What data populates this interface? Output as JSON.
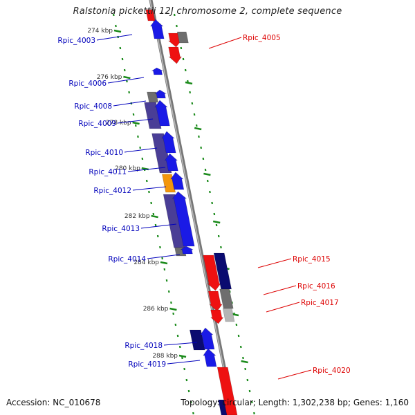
{
  "title": "Ralstonia pickettii 12J chromosome 2, complete sequence",
  "footer": {
    "accession": "Accession: NC_010678",
    "topology": "Topology: circular; Length: 1,302,238 bp; Genes: 1,160"
  },
  "colors": {
    "forward_label": "#0000bb",
    "reverse_label": "#dd0000",
    "scale_tick": "#1a8a1a",
    "backbone": "#8c8c8c"
  },
  "scale_labels": [
    "274 kbp",
    "276 kbp",
    "278 kbp",
    "280 kbp",
    "282 kbp",
    "284 kbp",
    "286 kbp",
    "288 kbp"
  ],
  "genes": [
    {
      "name": "Rpic_4003",
      "strand": "forward"
    },
    {
      "name": "Rpic_4005",
      "strand": "reverse"
    },
    {
      "name": "Rpic_4006",
      "strand": "forward"
    },
    {
      "name": "Rpic_4008",
      "strand": "forward"
    },
    {
      "name": "Rpic_4009",
      "strand": "forward"
    },
    {
      "name": "Rpic_4010",
      "strand": "forward"
    },
    {
      "name": "Rpic_4011",
      "strand": "forward"
    },
    {
      "name": "Rpic_4012",
      "strand": "forward"
    },
    {
      "name": "Rpic_4013",
      "strand": "forward"
    },
    {
      "name": "Rpic_4014",
      "strand": "forward"
    },
    {
      "name": "Rpic_4015",
      "strand": "reverse"
    },
    {
      "name": "Rpic_4016",
      "strand": "reverse"
    },
    {
      "name": "Rpic_4017",
      "strand": "reverse"
    },
    {
      "name": "Rpic_4018",
      "strand": "forward"
    },
    {
      "name": "Rpic_4019",
      "strand": "forward"
    },
    {
      "name": "Rpic_4020",
      "strand": "reverse"
    }
  ]
}
